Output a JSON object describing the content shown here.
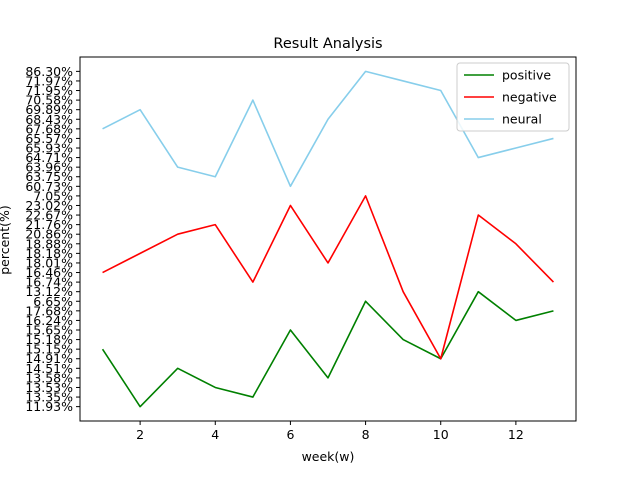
{
  "chart_data": {
    "type": "line",
    "title": "Result Analysis",
    "xlabel": "week(w)",
    "ylabel": "percent(%)",
    "x": [
      1,
      2,
      3,
      4,
      5,
      6,
      7,
      8,
      9,
      10,
      11,
      12,
      13
    ],
    "xticks": [
      2,
      4,
      6,
      8,
      10,
      12
    ],
    "xlim": [
      0.4,
      13.6
    ],
    "y_categories": [
      "11.93%",
      "13.35%",
      "13.53%",
      "13.58%",
      "14.51%",
      "14.91%",
      "15.15%",
      "15.18%",
      "15.65%",
      "16.24%",
      "17.68%",
      "6.65%",
      "13.12%",
      "16.74%",
      "16.46%",
      "18.01%",
      "18.18%",
      "18.88%",
      "20.86%",
      "21.76%",
      "22.67%",
      "23.02%",
      "7.05%",
      "60.73%",
      "63.75%",
      "63.96%",
      "64.71%",
      "65.93%",
      "65.57%",
      "67.68%",
      "68.43%",
      "69.89%",
      "70.58%",
      "71.95%",
      "71.97%",
      "86.30%"
    ],
    "ylim": [
      -1.5,
      36.5
    ],
    "legend": "upper-right",
    "series": [
      {
        "name": "positive",
        "color": "#008000",
        "values": [
          "15.15%",
          "11.93%",
          "14.51%",
          "13.53%",
          "13.35%",
          "15.65%",
          "13.58%",
          "6.65%",
          "15.18%",
          "14.91%",
          "13.12%",
          "16.24%",
          "17.68%"
        ]
      },
      {
        "name": "negative",
        "color": "#ff0000",
        "values": [
          "16.46%",
          "18.18%",
          "20.86%",
          "21.76%",
          "16.74%",
          "23.02%",
          "18.01%",
          "7.05%",
          "13.12%",
          "14.91%",
          "22.67%",
          "18.88%",
          "16.74%"
        ]
      },
      {
        "name": "neural",
        "color": "#87ceeb",
        "values": [
          "67.68%",
          "69.89%",
          "63.96%",
          "63.75%",
          "70.58%",
          "60.73%",
          "68.43%",
          "86.30%",
          "71.97%",
          "71.95%",
          "64.71%",
          "65.93%",
          "65.57%"
        ]
      }
    ]
  }
}
